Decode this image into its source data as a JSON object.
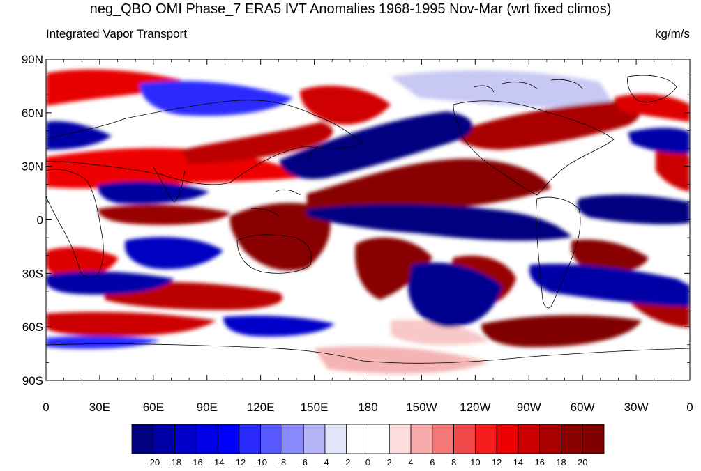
{
  "header": {
    "title": "neg_QBO OMI Phase_7 ERA5 IVT Anomalies 1968-1995 Nov-Mar (wrt fixed climos)",
    "left_subtitle": "Integrated Vapor Transport",
    "right_subtitle": "kg/m/s"
  },
  "map": {
    "lon_labels": [
      "0",
      "30E",
      "60E",
      "90E",
      "120E",
      "150E",
      "180",
      "150W",
      "120W",
      "90W",
      "60W",
      "30W",
      "0"
    ],
    "lat_labels": [
      "90N",
      "60N",
      "30N",
      "0",
      "30S",
      "60S",
      "90S"
    ]
  },
  "colorbar": {
    "labels": [
      "-20",
      "-18",
      "-16",
      "-14",
      "-12",
      "-10",
      "-8",
      "-6",
      "-4",
      "-2",
      "0",
      "2",
      "4",
      "6",
      "8",
      "10",
      "12",
      "14",
      "16",
      "18",
      "20"
    ],
    "colors": [
      "#000080",
      "#0000a6",
      "#0000c8",
      "#0000e6",
      "#0000ff",
      "#2a2aff",
      "#5858ff",
      "#8a8aff",
      "#b4b4f4",
      "#e4e4f8",
      "#ffffff",
      "#ffffff",
      "#fcdcdc",
      "#f8aaaa",
      "#f47878",
      "#f24a4a",
      "#f41c1c",
      "#ee0000",
      "#cc0000",
      "#aa0000",
      "#880000",
      "#800000"
    ]
  }
}
